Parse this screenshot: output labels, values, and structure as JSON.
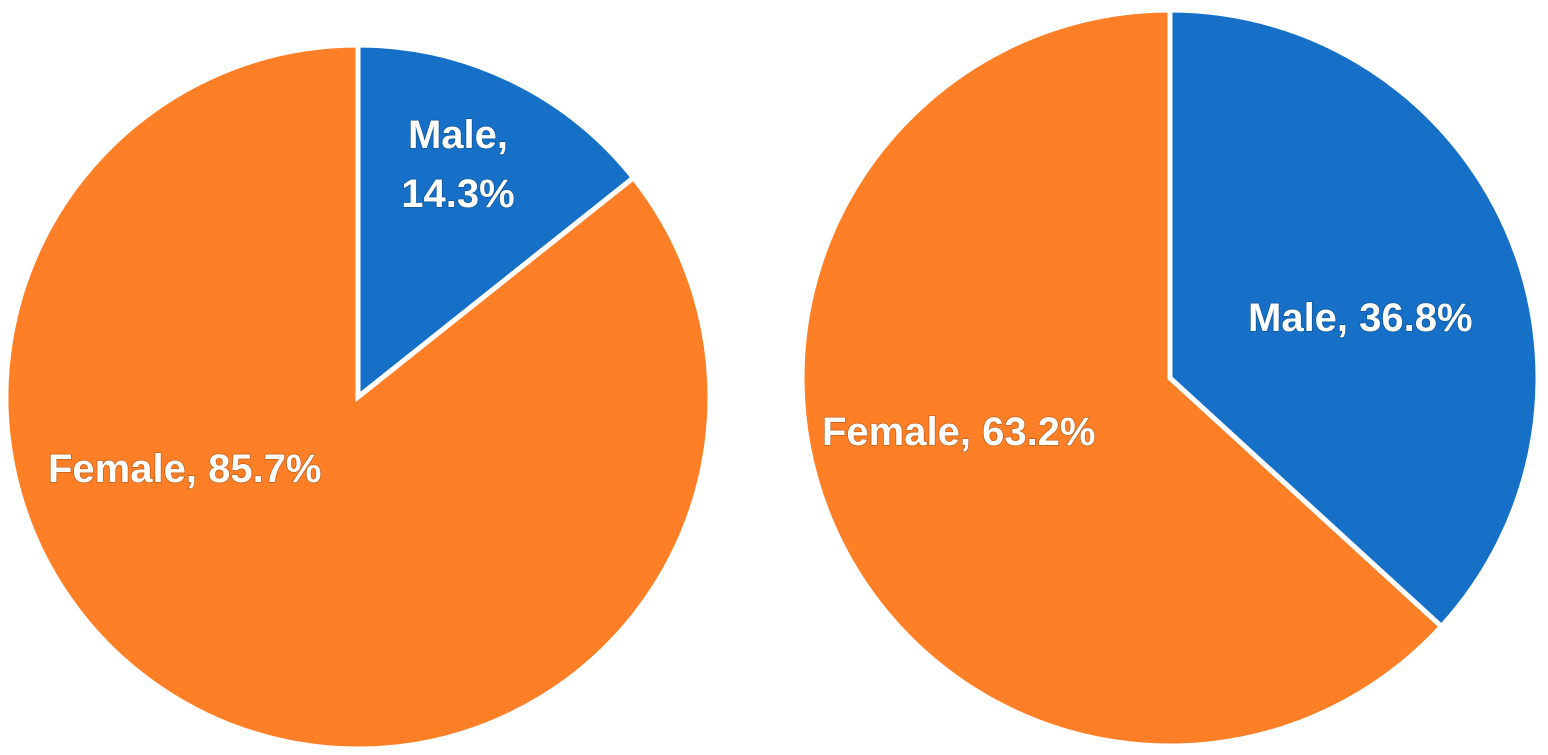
{
  "chart_data": [
    {
      "type": "pie",
      "slices": [
        {
          "label": "Male",
          "value": 14.3,
          "display": "14.3%",
          "color": "#1670C8"
        },
        {
          "label": "Female",
          "value": 85.7,
          "display": "85.7%",
          "color": "#FE7F26"
        }
      ]
    },
    {
      "type": "pie",
      "slices": [
        {
          "label": "Male",
          "value": 36.8,
          "display": "36.8%",
          "color": "#1670C8"
        },
        {
          "label": "Female",
          "value": 63.2,
          "display": "63.2%",
          "color": "#FE7F26"
        }
      ]
    }
  ]
}
